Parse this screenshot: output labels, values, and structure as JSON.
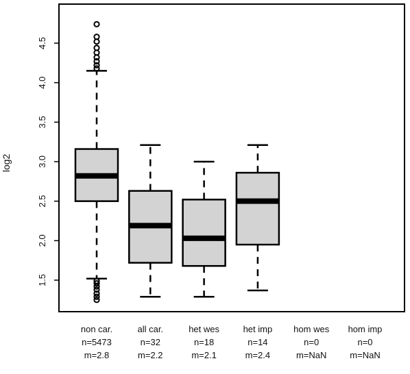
{
  "chart_data": {
    "type": "boxplot",
    "title": "",
    "xlabel": "",
    "ylabel": "log2",
    "ylim": [
      1.2,
      4.8
    ],
    "yticks": [
      "1.5",
      "2.0",
      "2.5",
      "3.0",
      "3.5",
      "4.0",
      "4.5"
    ],
    "box_fill": "#d3d3d3",
    "stroke": "#000000",
    "categories": [
      {
        "name": "non car.",
        "n_label": "n=5473",
        "m_label": "m=2.8",
        "min": 1.52,
        "q1": 2.5,
        "median": 2.82,
        "q3": 3.16,
        "max": 4.15,
        "outliers": [
          4.18,
          4.22,
          4.27,
          4.32,
          4.38,
          4.44,
          4.52,
          4.58,
          4.74,
          1.49,
          1.46,
          1.42,
          1.38,
          1.33,
          1.29,
          1.25
        ]
      },
      {
        "name": "all car.",
        "n_label": "n=32",
        "m_label": "m=2.2",
        "min": 1.29,
        "q1": 1.72,
        "median": 2.19,
        "q3": 2.63,
        "max": 3.21,
        "outliers": []
      },
      {
        "name": "het wes",
        "n_label": "n=18",
        "m_label": "m=2.1",
        "min": 1.29,
        "q1": 1.68,
        "median": 2.03,
        "q3": 2.52,
        "max": 3.0,
        "outliers": []
      },
      {
        "name": "het imp",
        "n_label": "n=14",
        "m_label": "m=2.4",
        "min": 1.37,
        "q1": 1.95,
        "median": 2.5,
        "q3": 2.86,
        "max": 3.21,
        "outliers": []
      },
      {
        "name": "hom wes",
        "n_label": "n=0",
        "m_label": "m=NaN"
      },
      {
        "name": "hom imp",
        "n_label": "n=0",
        "m_label": "m=NaN"
      }
    ]
  }
}
